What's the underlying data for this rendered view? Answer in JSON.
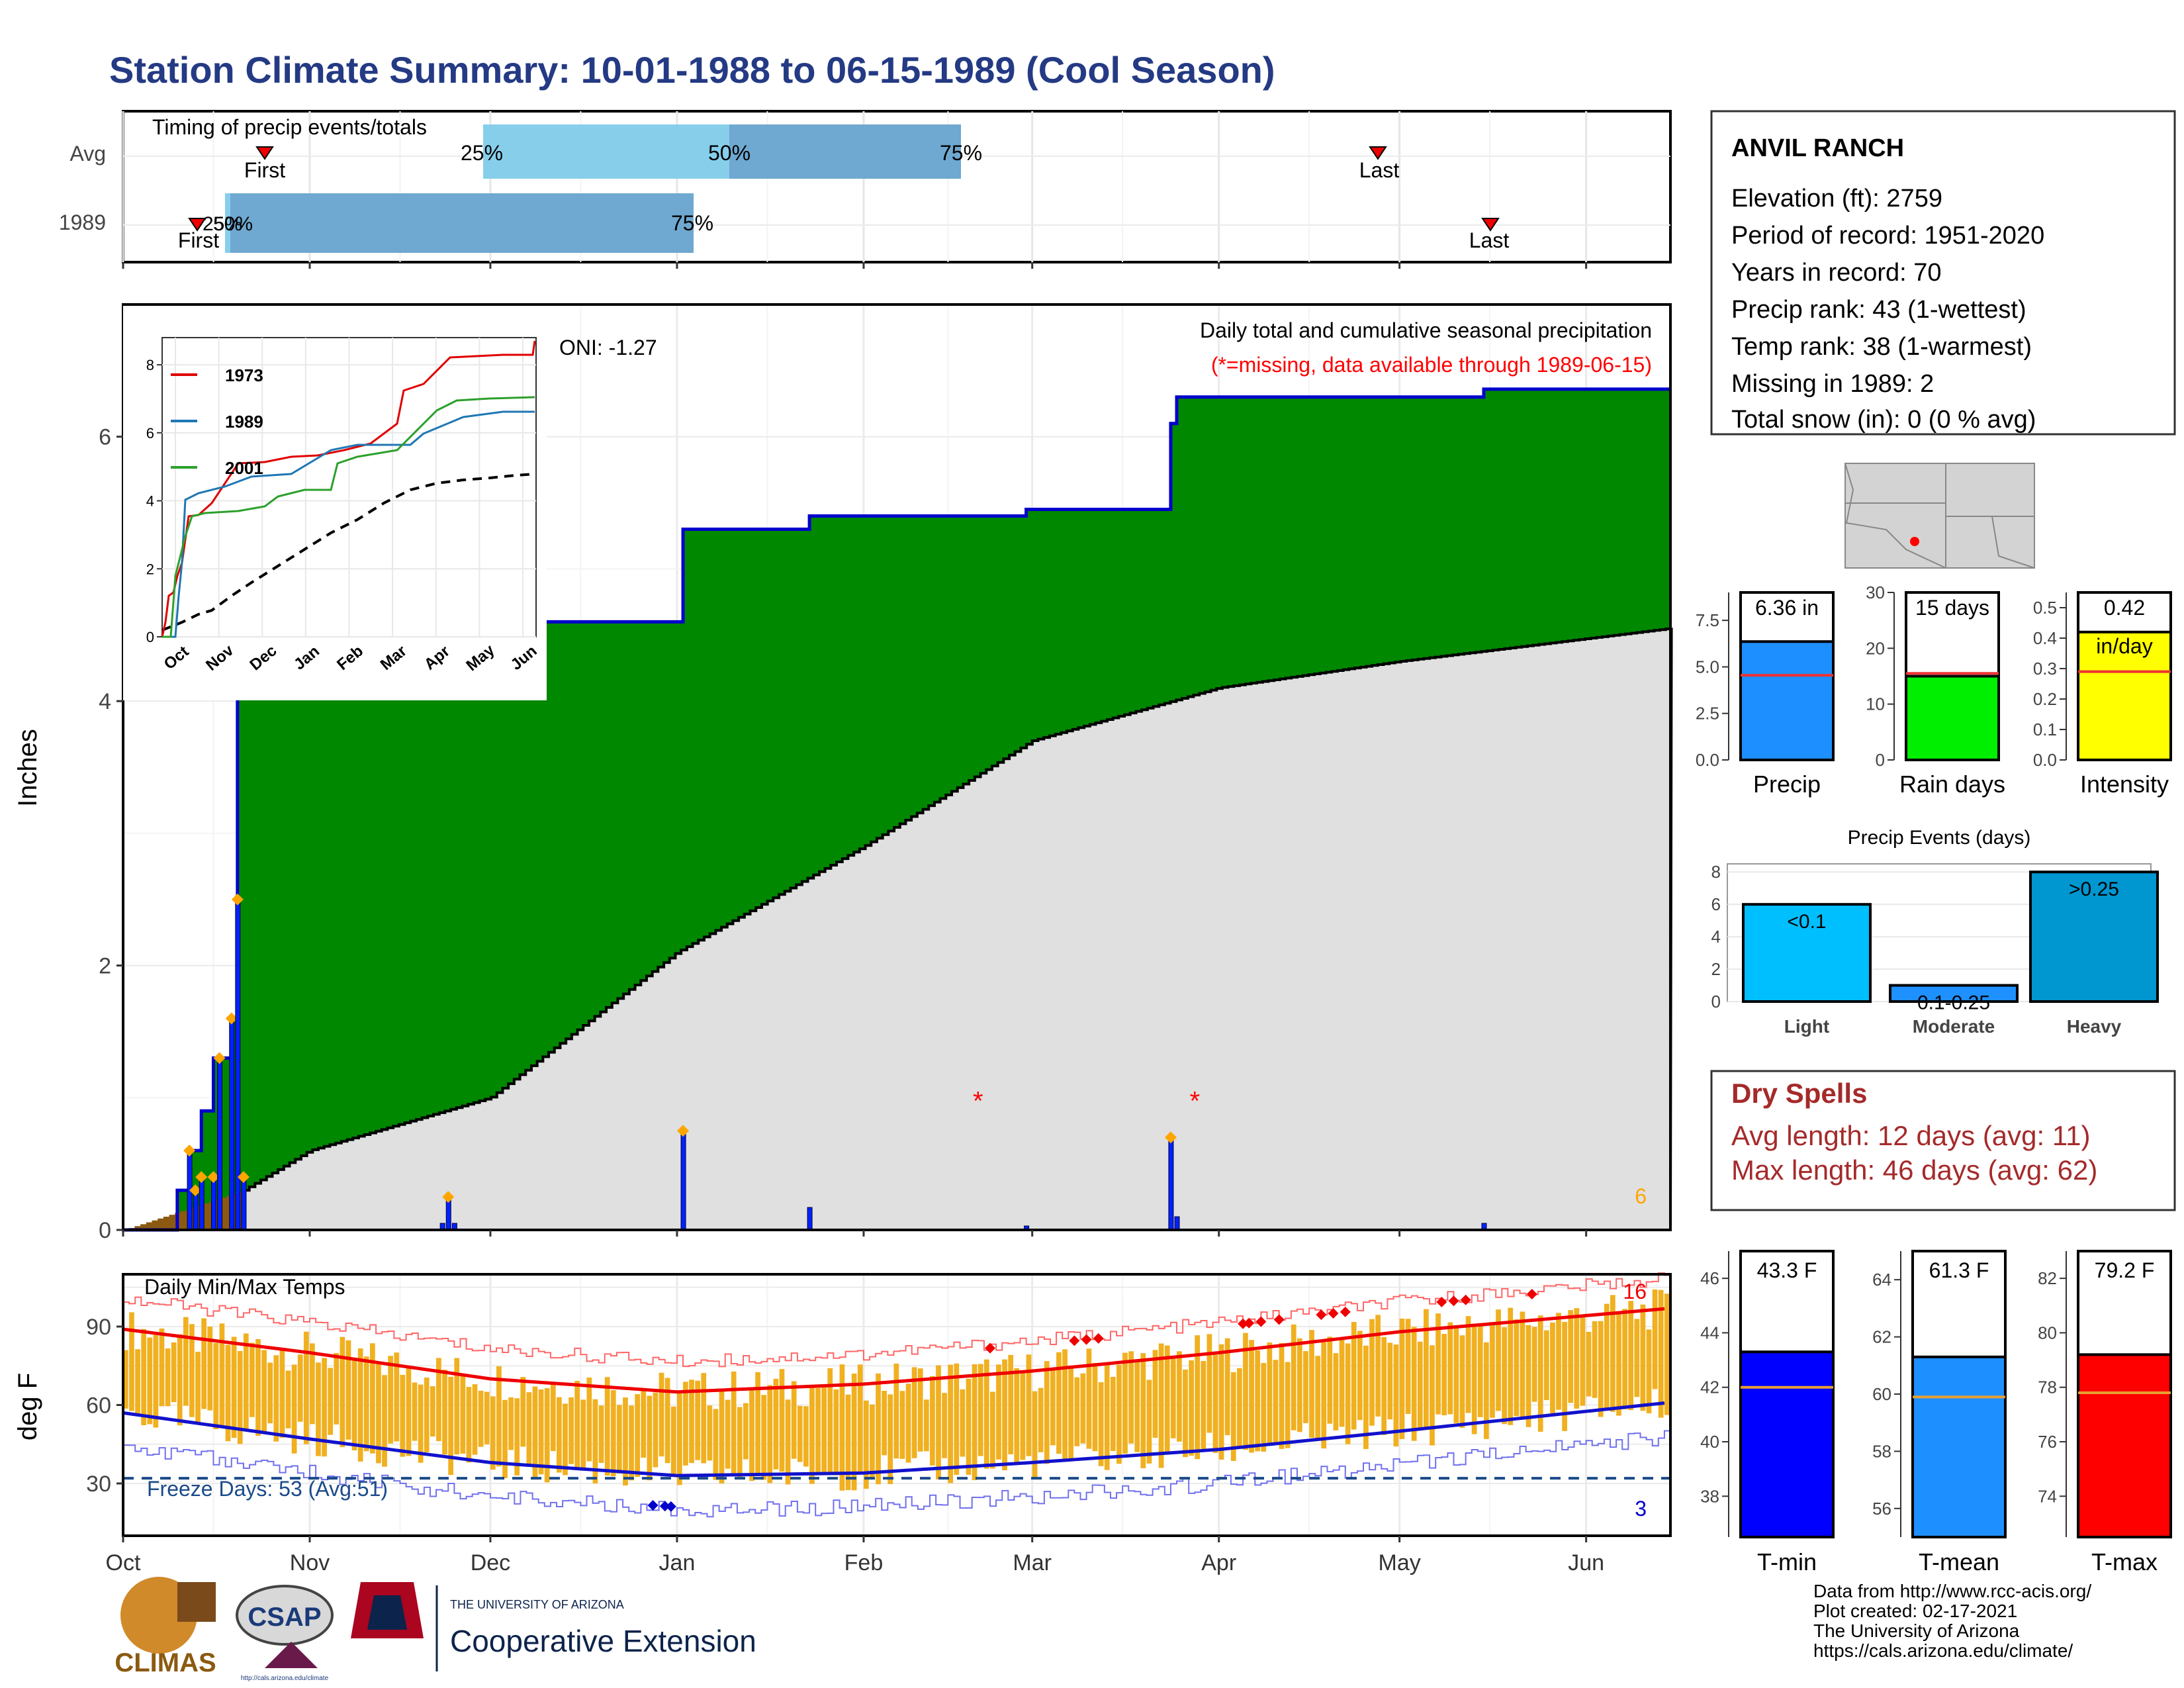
{
  "title": "Station Climate Summary: 10-01-1988 to 06-15-1989 (Cool Season)",
  "colors": {
    "title": "#243a84",
    "green": "#008800",
    "gray": "#e0e0e0",
    "brown": "#8b5a10",
    "blue_bar": "#0022ff",
    "orange_bar": "#f0b020",
    "tmax_line": "#ee0000",
    "tmin_line": "#1111cc",
    "dry_text": "#a52a2a",
    "missing": "#ff0000"
  },
  "x_month_labels": [
    "Oct",
    "Nov",
    "Dec",
    "Jan",
    "Feb",
    "Mar",
    "Apr",
    "May",
    "Jun"
  ],
  "timing": {
    "label": "Timing of precip events/totals",
    "rows": [
      "Avg",
      "1989"
    ],
    "avg": {
      "first_label": "First",
      "last_label": "Last",
      "p25": "25%",
      "p50": "50%",
      "p75": "75%"
    },
    "yr": {
      "first_label": "First",
      "last_label": "Last",
      "p25": "25%",
      "p50": "50%",
      "p75": "75%"
    }
  },
  "precip_panel": {
    "ylabel": "Inches",
    "yticks": [
      "0",
      "2",
      "4",
      "6"
    ],
    "oni": "ONI: -1.27",
    "desc": "Daily total and cumulative seasonal precipitation",
    "missing_note": "(*=missing, data available through 1989-06-15)",
    "corner_count": "6"
  },
  "inset": {
    "yticks": [
      "0",
      "2",
      "4",
      "6",
      "8"
    ],
    "xticks": [
      "Oct",
      "Nov",
      "Dec",
      "Jan",
      "Feb",
      "Mar",
      "Apr",
      "May",
      "Jun"
    ],
    "legend": [
      "1973",
      "1989",
      "2001"
    ]
  },
  "temp_panel": {
    "label": "Daily Min/Max Temps",
    "ylabel": "deg F",
    "yticks": [
      "30",
      "60",
      "90"
    ],
    "freeze": "Freeze Days: 53 (Avg:51)",
    "max_count": "16",
    "min_count": "3"
  },
  "station": {
    "name": "ANVIL RANCH",
    "lines": [
      "Elevation (ft): 2759",
      "Period of record: 1951-2020",
      "Years in record: 70",
      "Precip rank: 43 (1-wettest)",
      "Temp rank: 38 (1-warmest)",
      "Missing in 1989: 2",
      "Total snow (in): 0 (0 % avg)"
    ]
  },
  "summary_bars": [
    {
      "label": "Precip",
      "value_label": "6.36 in",
      "value": 6.36,
      "avg": 4.55,
      "ymax": 9,
      "yticks": [
        "0.0",
        "2.5",
        "5.0",
        "7.5"
      ],
      "color": "#1e8fff"
    },
    {
      "label": "Rain days",
      "value_label": "15 days",
      "value": 15,
      "avg": 15.5,
      "ymax": 30,
      "yticks": [
        "0",
        "10",
        "20",
        "30"
      ],
      "color": "#00ee00"
    },
    {
      "label": "Intensity",
      "value_label": "0.42",
      "sub_label": "in/day",
      "value": 0.42,
      "avg": 0.29,
      "ymax": 0.55,
      "yticks": [
        "0.0",
        "0.1",
        "0.2",
        "0.3",
        "0.4",
        "0.5"
      ],
      "color": "#ffff00"
    }
  ],
  "events": {
    "title": "Precip Events (days)",
    "yticks": [
      "0",
      "2",
      "4",
      "6",
      "8"
    ],
    "bars": [
      {
        "name": "Light",
        "label": "<0.1",
        "value": 6,
        "color": "#00bfff"
      },
      {
        "name": "Moderate",
        "label": "0.1-0.25",
        "value": 1,
        "color": "#1e90ff"
      },
      {
        "name": "Heavy",
        "label": ">0.25",
        "value": 8,
        "color": "#0096d0"
      }
    ]
  },
  "dry_spells": {
    "title": "Dry Spells",
    "avg": "Avg length: 12 days (avg: 11)",
    "max": "Max length: 46 days (avg: 62)"
  },
  "temp_bars": [
    {
      "label": "T-min",
      "value_label": "43.3 F",
      "value": 43.3,
      "avg": 42,
      "ymin": 36.5,
      "ymax": 47,
      "yticks": [
        "38",
        "40",
        "42",
        "44",
        "46"
      ],
      "color": "#0000ff"
    },
    {
      "label": "T-mean",
      "value_label": "61.3 F",
      "value": 61.3,
      "avg": 59.9,
      "ymin": 55,
      "ymax": 65,
      "yticks": [
        "56",
        "58",
        "60",
        "62",
        "64"
      ],
      "color": "#1e8fff"
    },
    {
      "label": "T-max",
      "value_label": "79.2 F",
      "value": 79.2,
      "avg": 77.8,
      "ymin": 72.5,
      "ymax": 83,
      "yticks": [
        "74",
        "76",
        "78",
        "80",
        "82"
      ],
      "color": "#ff0000"
    }
  ],
  "footer": {
    "lines": [
      "Data from http://www.rcc-acis.org/",
      "Plot created: 02-17-2021",
      "The University of Arizona",
      "https://cals.arizona.edu/climate/"
    ],
    "logo_climas": "CLIMAS",
    "logo_csap": "CSAP",
    "logo_csap_url": "http://cals.arizona.edu/climate",
    "ua_small": "THE UNIVERSITY OF ARIZONA",
    "ua_big": "Cooperative Extension"
  },
  "chart_data": {
    "type": "area",
    "title": "Daily total and cumulative seasonal precipitation",
    "ylabel": "Inches",
    "ylim": [
      0,
      7
    ],
    "x_range": [
      "1988-10-01",
      "1989-06-15"
    ],
    "cumulative_1989": [
      {
        "date": "1988-10-10",
        "value": 0.3
      },
      {
        "date": "1988-10-12",
        "value": 0.6
      },
      {
        "date": "1988-10-14",
        "value": 0.9
      },
      {
        "date": "1988-10-16",
        "value": 1.3
      },
      {
        "date": "1988-10-19",
        "value": 1.6
      },
      {
        "date": "1988-10-20",
        "value": 4.1
      },
      {
        "date": "1988-10-21",
        "value": 4.5
      },
      {
        "date": "1988-11-24",
        "value": 4.6
      },
      {
        "date": "1989-01-02",
        "value": 5.3
      },
      {
        "date": "1989-01-23",
        "value": 5.4
      },
      {
        "date": "1989-02-28",
        "value": 5.45
      },
      {
        "date": "1989-03-24",
        "value": 6.1
      },
      {
        "date": "1989-03-25",
        "value": 6.3
      },
      {
        "date": "1989-05-15",
        "value": 6.36
      }
    ],
    "average_cumulative": [
      {
        "date": "1988-10-01",
        "value": 0.0
      },
      {
        "date": "1988-10-21",
        "value": 0.3
      },
      {
        "date": "1988-11-01",
        "value": 0.6
      },
      {
        "date": "1988-12-01",
        "value": 1.0
      },
      {
        "date": "1989-01-01",
        "value": 2.1
      },
      {
        "date": "1989-02-01",
        "value": 2.9
      },
      {
        "date": "1989-03-01",
        "value": 3.7
      },
      {
        "date": "1989-04-01",
        "value": 4.1
      },
      {
        "date": "1989-05-01",
        "value": 4.3
      },
      {
        "date": "1989-06-15",
        "value": 4.55
      }
    ],
    "daily_precip": [
      {
        "date": "1988-10-12",
        "value": 0.6
      },
      {
        "date": "1988-10-13",
        "value": 0.3
      },
      {
        "date": "1988-10-14",
        "value": 0.4
      },
      {
        "date": "1988-10-16",
        "value": 0.4
      },
      {
        "date": "1988-10-17",
        "value": 1.3
      },
      {
        "date": "1988-10-19",
        "value": 1.6
      },
      {
        "date": "1988-10-20",
        "value": 2.5
      },
      {
        "date": "1988-10-21",
        "value": 0.4
      },
      {
        "date": "1988-11-23",
        "value": 0.05
      },
      {
        "date": "1988-11-24",
        "value": 0.25
      },
      {
        "date": "1988-11-25",
        "value": 0.05
      },
      {
        "date": "1989-01-02",
        "value": 0.75
      },
      {
        "date": "1989-01-23",
        "value": 0.17
      },
      {
        "date": "1989-02-28",
        "value": 0.03
      },
      {
        "date": "1989-03-24",
        "value": 0.7
      },
      {
        "date": "1989-03-25",
        "value": 0.1
      },
      {
        "date": "1989-05-15",
        "value": 0.05
      }
    ],
    "missing_days": [
      "1989-02-20",
      "1989-03-28"
    ],
    "temp_series": {
      "ylabel": "deg F",
      "ylim": [
        10,
        110
      ],
      "avg_tmax": [
        {
          "date": "1988-10-01",
          "value": 89
        },
        {
          "date": "1988-11-01",
          "value": 80
        },
        {
          "date": "1988-12-01",
          "value": 70
        },
        {
          "date": "1989-01-01",
          "value": 65
        },
        {
          "date": "1989-02-01",
          "value": 68
        },
        {
          "date": "1989-03-01",
          "value": 73
        },
        {
          "date": "1989-04-01",
          "value": 80
        },
        {
          "date": "1989-05-01",
          "value": 88
        },
        {
          "date": "1989-06-15",
          "value": 97
        }
      ],
      "avg_tmin": [
        {
          "date": "1988-10-01",
          "value": 57
        },
        {
          "date": "1988-11-01",
          "value": 47
        },
        {
          "date": "1988-12-01",
          "value": 38
        },
        {
          "date": "1989-01-01",
          "value": 33
        },
        {
          "date": "1989-02-01",
          "value": 34
        },
        {
          "date": "1989-03-01",
          "value": 38
        },
        {
          "date": "1989-04-01",
          "value": 43
        },
        {
          "date": "1989-05-01",
          "value": 50
        },
        {
          "date": "1989-06-15",
          "value": 61
        }
      ],
      "freeze_line": 32
    }
  }
}
